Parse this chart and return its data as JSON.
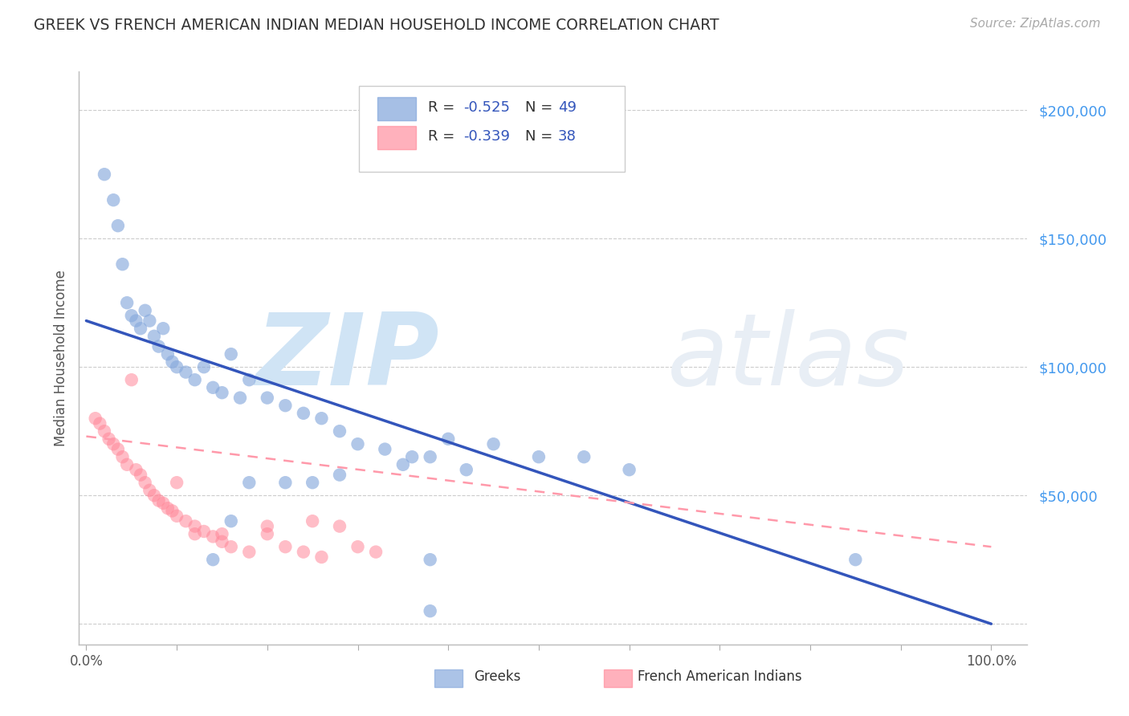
{
  "title": "GREEK VS FRENCH AMERICAN INDIAN MEDIAN HOUSEHOLD INCOME CORRELATION CHART",
  "source": "Source: ZipAtlas.com",
  "ylabel": "Median Household Income",
  "ytick_positions": [
    0,
    50000,
    100000,
    150000,
    200000
  ],
  "ytick_labels": [
    "",
    "$50,000",
    "$100,000",
    "$150,000",
    "$200,000"
  ],
  "ymin": -8000,
  "ymax": 215000,
  "xmin": -0.008,
  "xmax": 1.04,
  "legend1_r": "R = -0.525",
  "legend1_n": "N = 49",
  "legend2_r": "R = -0.339",
  "legend2_n": "N = 38",
  "legend1_label": "Greeks",
  "legend2_label": "French American Indians",
  "blue_color": "#88AADD",
  "pink_color": "#FF8899",
  "blue_line_color": "#3355BB",
  "pink_line_color": "#FF99AA",
  "ytick_color": "#4499EE",
  "watermark_color": "#D0E4F5",
  "blue_x": [
    0.02,
    0.03,
    0.035,
    0.04,
    0.045,
    0.05,
    0.055,
    0.06,
    0.065,
    0.07,
    0.075,
    0.08,
    0.085,
    0.09,
    0.095,
    0.1,
    0.11,
    0.12,
    0.13,
    0.14,
    0.15,
    0.16,
    0.17,
    0.18,
    0.2,
    0.22,
    0.24,
    0.26,
    0.28,
    0.3,
    0.33,
    0.36,
    0.4,
    0.45,
    0.5,
    0.55,
    0.6,
    0.38,
    0.42,
    0.35,
    0.28,
    0.25,
    0.22,
    0.18,
    0.16,
    0.14,
    0.38,
    0.85,
    0.38
  ],
  "blue_y": [
    175000,
    165000,
    155000,
    140000,
    125000,
    120000,
    118000,
    115000,
    122000,
    118000,
    112000,
    108000,
    115000,
    105000,
    102000,
    100000,
    98000,
    95000,
    100000,
    92000,
    90000,
    105000,
    88000,
    95000,
    88000,
    85000,
    82000,
    80000,
    75000,
    70000,
    68000,
    65000,
    72000,
    70000,
    65000,
    65000,
    60000,
    65000,
    60000,
    62000,
    58000,
    55000,
    55000,
    55000,
    40000,
    25000,
    25000,
    25000,
    5000
  ],
  "pink_x": [
    0.01,
    0.015,
    0.02,
    0.025,
    0.03,
    0.035,
    0.04,
    0.045,
    0.05,
    0.055,
    0.06,
    0.065,
    0.07,
    0.075,
    0.08,
    0.085,
    0.09,
    0.095,
    0.1,
    0.11,
    0.12,
    0.13,
    0.14,
    0.15,
    0.16,
    0.18,
    0.2,
    0.22,
    0.24,
    0.26,
    0.28,
    0.3,
    0.32,
    0.25,
    0.2,
    0.15,
    0.12,
    0.1
  ],
  "pink_y": [
    80000,
    78000,
    75000,
    72000,
    70000,
    68000,
    65000,
    62000,
    95000,
    60000,
    58000,
    55000,
    52000,
    50000,
    48000,
    47000,
    45000,
    44000,
    42000,
    40000,
    38000,
    36000,
    34000,
    32000,
    30000,
    28000,
    35000,
    30000,
    28000,
    26000,
    38000,
    30000,
    28000,
    40000,
    38000,
    35000,
    35000,
    55000
  ],
  "blue_trend_x": [
    0.0,
    1.0
  ],
  "blue_trend_y": [
    118000,
    0
  ],
  "pink_trend_x": [
    0.0,
    1.0
  ],
  "pink_trend_y": [
    73000,
    30000
  ],
  "xtick_positions": [
    0.0,
    0.1,
    0.2,
    0.3,
    0.4,
    0.5,
    0.6,
    0.7,
    0.8,
    0.9,
    1.0
  ],
  "xtick_labels": [
    "0.0%",
    "",
    "",
    "",
    "",
    "",
    "",
    "",
    "",
    "",
    "100.0%"
  ]
}
